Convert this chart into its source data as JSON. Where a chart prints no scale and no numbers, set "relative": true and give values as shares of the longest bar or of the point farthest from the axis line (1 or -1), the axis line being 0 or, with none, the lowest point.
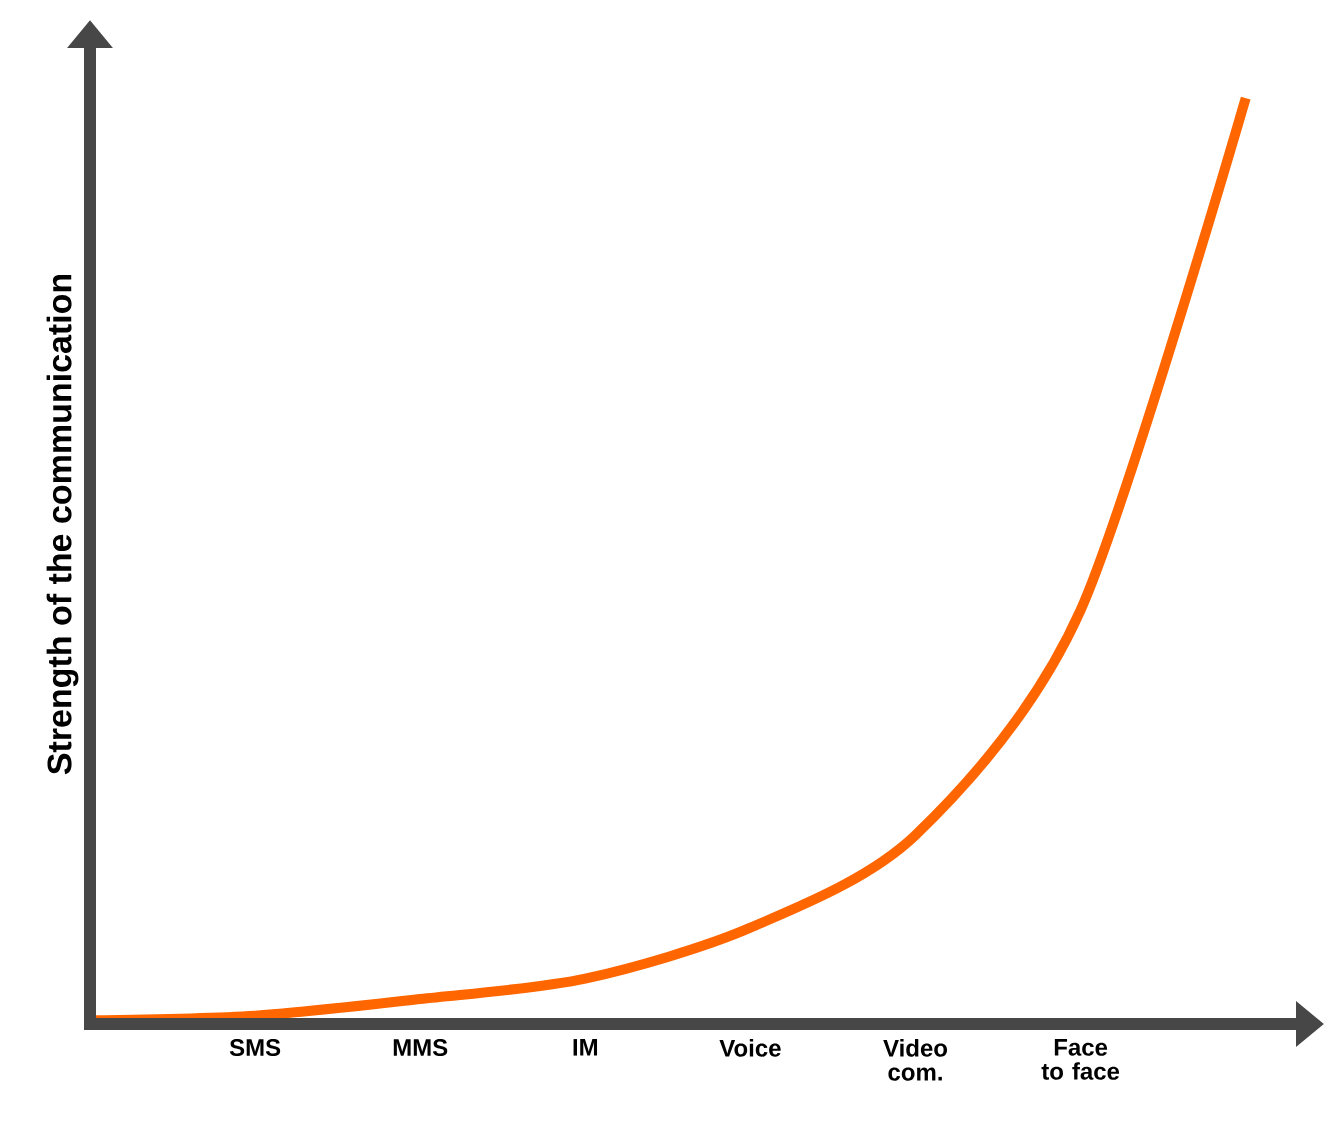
{
  "chart_data": {
    "type": "line",
    "relative": true,
    "ylabel": "Strength of the communication",
    "categories": [
      null,
      "SMS",
      "MMS",
      "IM",
      "Voice",
      "Video com.",
      "Face to face",
      null
    ],
    "values": [
      0.004,
      0.009,
      0.027,
      0.049,
      0.104,
      0.204,
      0.447,
      1
    ],
    "color": "#ff6600",
    "line_style": "solid"
  }
}
